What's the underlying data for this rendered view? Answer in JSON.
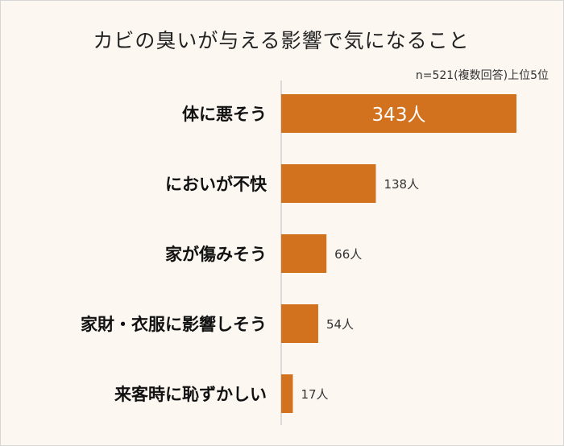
{
  "colors": {
    "bar": "#d2721f",
    "axis": "#d0d0d0",
    "label": "#111111",
    "value_inside": "#ffffff",
    "value_outside": "#333333"
  },
  "chart_data": {
    "type": "bar",
    "orientation": "horizontal",
    "title": "カビの臭いが与える影響で気になること",
    "note": "n=521(複数回答)上位5位",
    "categories": [
      "体に悪そう",
      "においが不快",
      "家が傷みそう",
      "家財・衣服に影響しそう",
      "来客時に恥ずかしい"
    ],
    "values": [
      343,
      138,
      66,
      54,
      17
    ],
    "value_labels": [
      "343人",
      "138人",
      "66人",
      "54人",
      "17人"
    ],
    "xlim": [
      0,
      343
    ],
    "grid": false,
    "legend": "none"
  }
}
